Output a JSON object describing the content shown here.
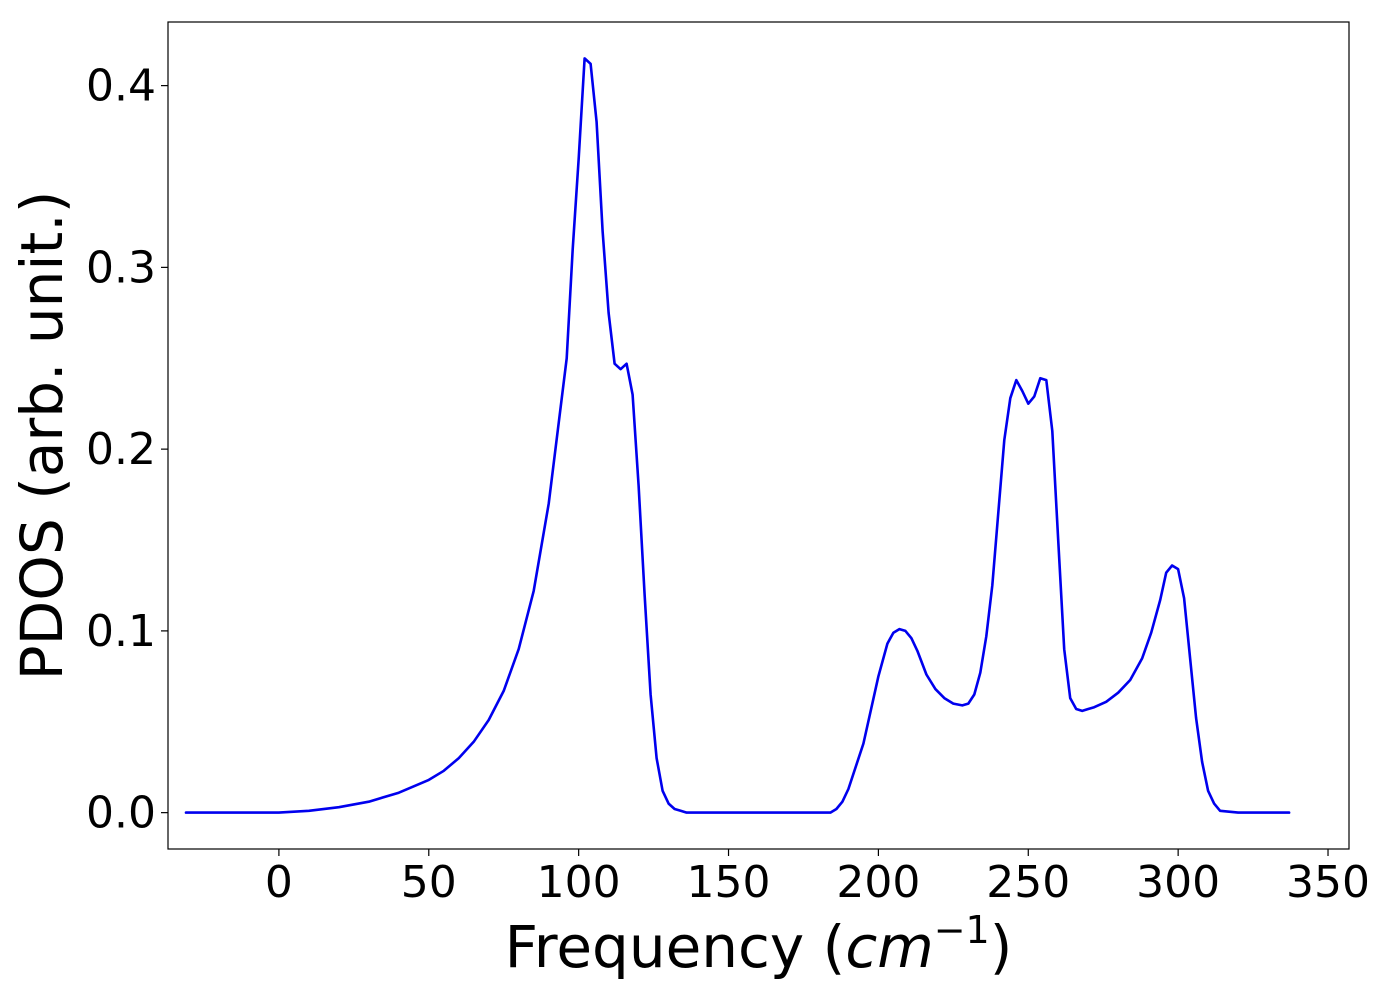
{
  "chart_data": {
    "type": "line",
    "title": "",
    "xlabel": {
      "text": "Frequency (",
      "unit_base": "cm",
      "unit_exp": "−1",
      "close": ")"
    },
    "ylabel": "PDOS (arb. unit.)",
    "xlim": [
      -37,
      357
    ],
    "ylim": [
      -0.02,
      0.435
    ],
    "xticks": [
      0,
      50,
      100,
      150,
      200,
      250,
      300,
      350
    ],
    "xtick_labels": [
      "0",
      "50",
      "100",
      "150",
      "200",
      "250",
      "300",
      "350"
    ],
    "yticks": [
      0.0,
      0.1,
      0.2,
      0.3,
      0.4
    ],
    "ytick_labels": [
      "0.0",
      "0.1",
      "0.2",
      "0.3",
      "0.4"
    ],
    "grid": false,
    "legend": "none",
    "series": [
      {
        "color": "#0000ee",
        "x": [
          -31,
          0,
          10,
          20,
          30,
          40,
          50,
          55,
          60,
          65,
          70,
          75,
          80,
          85,
          90,
          93,
          96,
          98,
          100,
          102,
          104,
          106,
          108,
          110,
          112,
          114,
          116,
          118,
          120,
          122,
          124,
          126,
          128,
          130,
          132,
          134,
          136,
          150,
          184,
          186,
          188,
          190,
          195,
          200,
          203,
          205,
          207,
          209,
          211,
          213,
          216,
          219,
          222,
          225,
          228,
          230,
          232,
          234,
          236,
          238,
          240,
          242,
          244,
          246,
          248,
          250,
          252,
          254,
          256,
          258,
          260,
          262,
          264,
          266,
          268,
          270,
          272,
          276,
          280,
          284,
          288,
          291,
          294,
          296,
          298,
          300,
          302,
          304,
          306,
          308,
          310,
          312,
          314,
          320,
          337
        ],
        "y": [
          0.0,
          0.0,
          0.001,
          0.003,
          0.006,
          0.011,
          0.018,
          0.023,
          0.03,
          0.039,
          0.051,
          0.067,
          0.09,
          0.122,
          0.17,
          0.21,
          0.25,
          0.31,
          0.36,
          0.415,
          0.412,
          0.38,
          0.32,
          0.275,
          0.247,
          0.244,
          0.247,
          0.23,
          0.18,
          0.12,
          0.065,
          0.03,
          0.012,
          0.005,
          0.002,
          0.001,
          0.0,
          0.0,
          0.0,
          0.002,
          0.006,
          0.013,
          0.038,
          0.075,
          0.093,
          0.099,
          0.101,
          0.1,
          0.096,
          0.089,
          0.076,
          0.068,
          0.063,
          0.06,
          0.059,
          0.06,
          0.065,
          0.077,
          0.097,
          0.125,
          0.165,
          0.205,
          0.228,
          0.238,
          0.232,
          0.225,
          0.229,
          0.239,
          0.238,
          0.21,
          0.15,
          0.09,
          0.063,
          0.057,
          0.056,
          0.057,
          0.058,
          0.061,
          0.066,
          0.073,
          0.085,
          0.099,
          0.117,
          0.132,
          0.136,
          0.134,
          0.118,
          0.085,
          0.052,
          0.028,
          0.012,
          0.005,
          0.001,
          0.0,
          0.0
        ]
      }
    ]
  }
}
